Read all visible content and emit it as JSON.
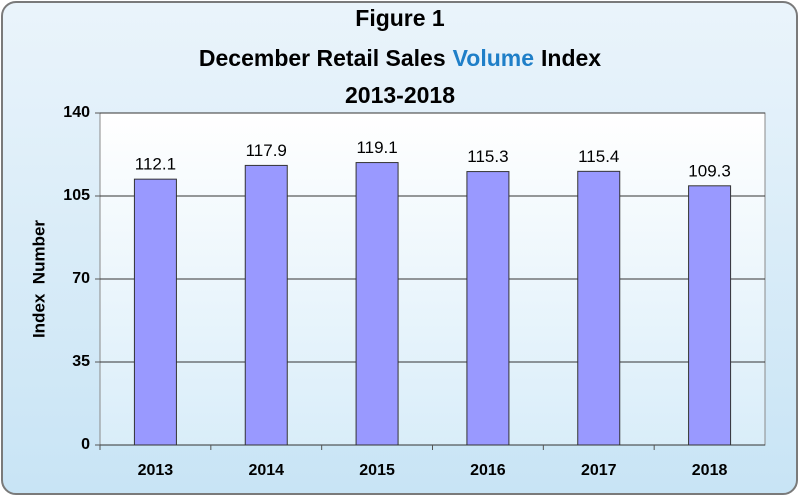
{
  "chart_data": {
    "type": "bar",
    "title": "Figure 1",
    "subtitle_parts": [
      {
        "text": "December Retail Sales",
        "color": "#000000"
      },
      {
        "text": "Volume",
        "color": "#1f7fc8"
      },
      {
        "text": "Index",
        "color": "#000000"
      }
    ],
    "period": "2013-2018",
    "y_label": "Index  Number",
    "categories": [
      "2013",
      "2014",
      "2015",
      "2016",
      "2017",
      "2018"
    ],
    "values": [
      112.1,
      117.9,
      119.1,
      115.3,
      115.4,
      109.3
    ],
    "color": "#9999ff",
    "ylim": [
      0,
      140
    ],
    "yticks": [
      0,
      35,
      70,
      105,
      140
    ],
    "grid": true
  }
}
